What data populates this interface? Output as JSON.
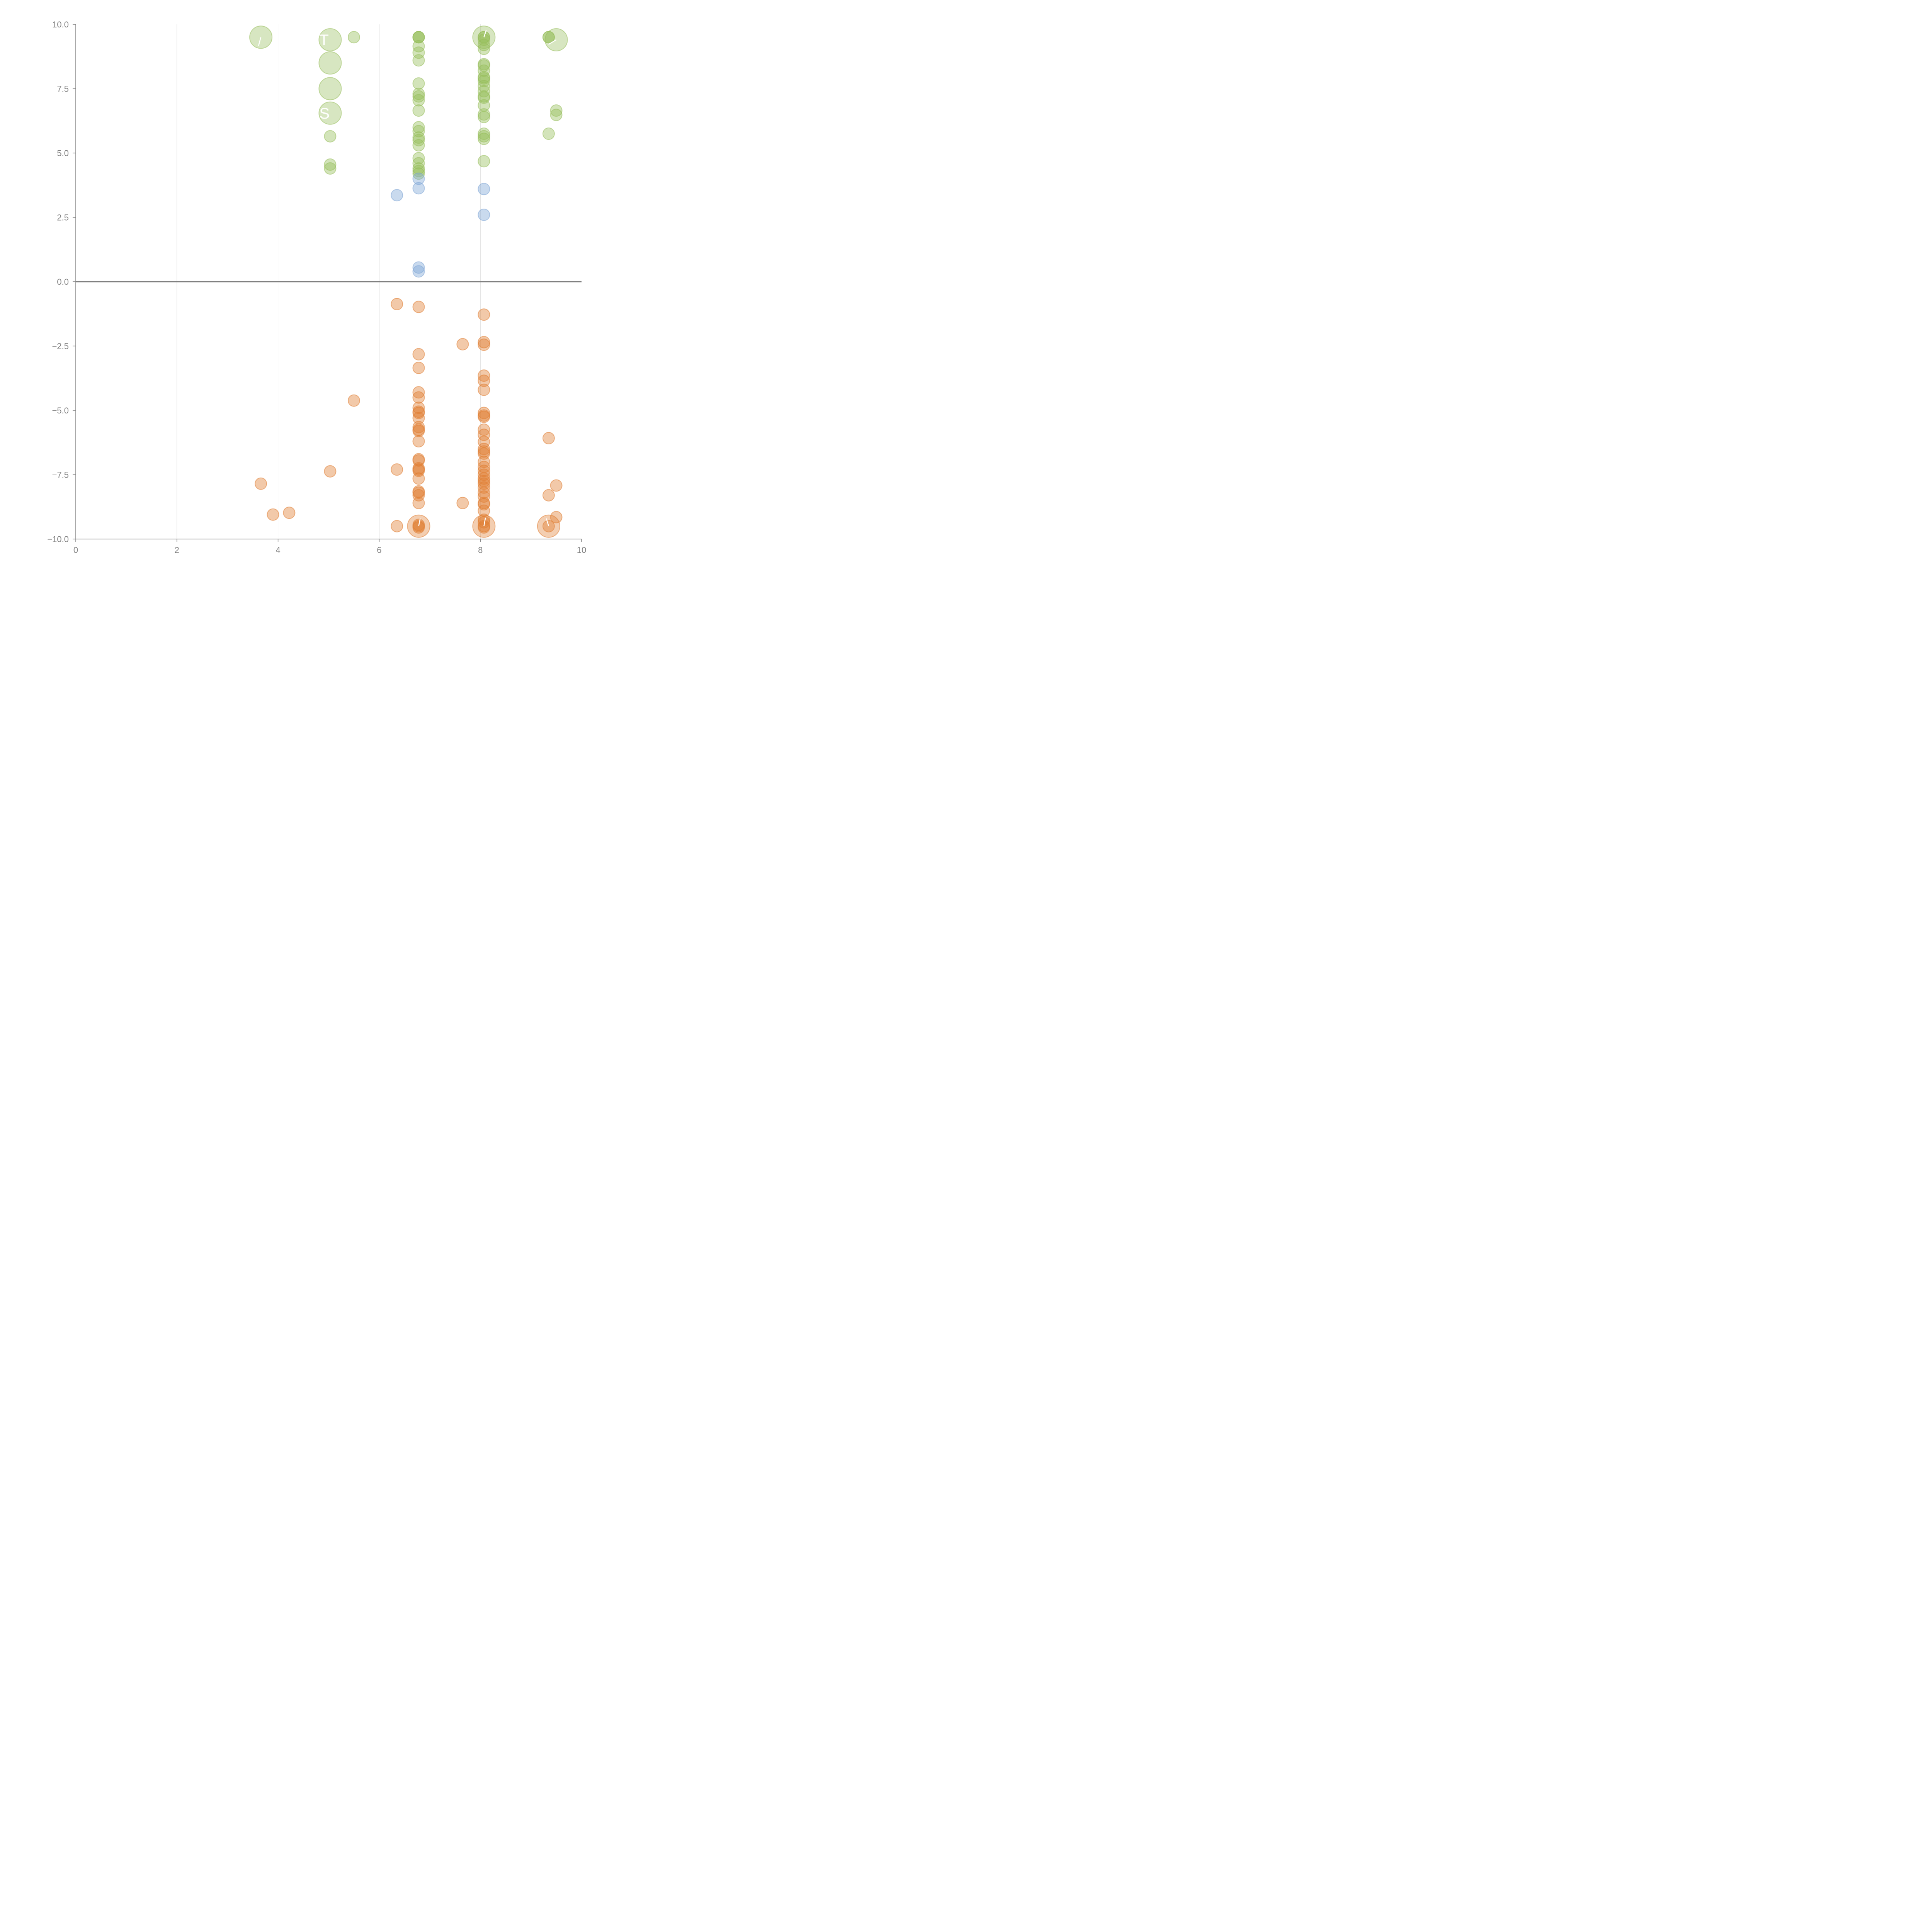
{
  "colors": {
    "positive_green": "#97be5b",
    "mid_blue": "#7fa6d6",
    "negative_orange": "#e07e33",
    "axis": "#808080",
    "grid": "#d9d9d9",
    "label": "#ffffff"
  },
  "chart_data": {
    "type": "scatter",
    "title": "",
    "xlabel": "",
    "ylabel": "",
    "xlim": [
      0,
      10
    ],
    "ylim": [
      -10,
      10
    ],
    "x_ticks": [
      "0",
      "2",
      "4",
      "6",
      "8",
      "10"
    ],
    "y_ticks": [
      "10.0",
      "7.5",
      "5.0",
      "2.5",
      "0.0",
      "−2.5",
      "−5.0",
      "−7.5",
      "−10.0"
    ],
    "grid": "vertical lines at x = 2, 4, 6, 8",
    "zero_line": true,
    "legend": "none",
    "series": [
      {
        "color": "#97be5b",
        "points": [
          [
            3.66,
            9.5,
            "large"
          ],
          [
            5.03,
            9.4,
            "large"
          ],
          [
            5.03,
            8.5,
            "large"
          ],
          [
            5.03,
            7.5,
            "large"
          ],
          [
            5.03,
            6.55,
            "large"
          ],
          [
            5.5,
            9.5
          ],
          [
            5.03,
            5.65
          ],
          [
            5.03,
            4.55
          ],
          [
            5.03,
            4.4
          ],
          [
            6.78,
            9.5
          ],
          [
            6.78,
            9.5
          ],
          [
            6.78,
            9.5
          ],
          [
            6.78,
            9.15
          ],
          [
            6.78,
            8.9
          ],
          [
            6.78,
            8.6
          ],
          [
            6.78,
            7.7
          ],
          [
            6.78,
            7.3
          ],
          [
            6.78,
            7.2
          ],
          [
            6.78,
            7.05
          ],
          [
            6.78,
            6.65
          ],
          [
            6.78,
            6.0
          ],
          [
            6.78,
            5.85
          ],
          [
            6.78,
            5.6
          ],
          [
            6.78,
            5.5
          ],
          [
            6.78,
            5.3
          ],
          [
            6.78,
            4.8
          ],
          [
            6.78,
            4.6
          ],
          [
            6.78,
            4.4
          ],
          [
            6.78,
            4.3
          ],
          [
            6.78,
            4.2
          ],
          [
            8.07,
            9.5,
            "large"
          ],
          [
            8.07,
            9.5
          ],
          [
            8.07,
            9.5
          ],
          [
            8.07,
            9.4
          ],
          [
            8.07,
            9.2
          ],
          [
            8.07,
            9.05
          ],
          [
            8.07,
            8.45
          ],
          [
            8.07,
            8.4
          ],
          [
            8.07,
            8.2
          ],
          [
            8.07,
            7.95
          ],
          [
            8.07,
            7.9
          ],
          [
            8.07,
            7.8
          ],
          [
            8.07,
            7.6
          ],
          [
            8.07,
            7.4
          ],
          [
            8.07,
            7.2
          ],
          [
            8.07,
            7.15
          ],
          [
            8.07,
            6.85
          ],
          [
            8.07,
            6.5
          ],
          [
            8.07,
            6.4
          ],
          [
            8.07,
            5.75
          ],
          [
            8.07,
            5.65
          ],
          [
            8.07,
            5.55
          ],
          [
            8.07,
            4.68
          ],
          [
            9.35,
            9.5
          ],
          [
            9.35,
            9.5
          ],
          [
            9.5,
            9.4,
            "large"
          ],
          [
            9.5,
            6.65
          ],
          [
            9.5,
            6.48
          ],
          [
            9.35,
            5.75
          ]
        ]
      },
      {
        "color": "#7fa6d6",
        "points": [
          [
            6.78,
            4.0
          ],
          [
            6.78,
            3.63
          ],
          [
            6.35,
            3.36
          ],
          [
            8.07,
            3.6
          ],
          [
            8.07,
            2.6
          ],
          [
            6.78,
            0.55
          ],
          [
            6.78,
            0.4
          ]
        ]
      },
      {
        "color": "#e07e33",
        "points": [
          [
            6.35,
            -0.87
          ],
          [
            6.78,
            -0.98
          ],
          [
            8.07,
            -1.28
          ],
          [
            7.65,
            -2.43
          ],
          [
            8.07,
            -2.35
          ],
          [
            8.07,
            -2.45
          ],
          [
            6.78,
            -2.82
          ],
          [
            6.78,
            -3.35
          ],
          [
            8.07,
            -3.65
          ],
          [
            8.07,
            -3.85
          ],
          [
            8.07,
            -4.2
          ],
          [
            6.78,
            -4.3
          ],
          [
            6.78,
            -4.5
          ],
          [
            5.5,
            -4.62
          ],
          [
            6.78,
            -4.9
          ],
          [
            6.78,
            -5.05
          ],
          [
            6.78,
            -5.1
          ],
          [
            6.78,
            -5.3
          ],
          [
            8.07,
            -5.1
          ],
          [
            8.07,
            -5.2
          ],
          [
            8.07,
            -5.25
          ],
          [
            6.78,
            -5.65
          ],
          [
            6.78,
            -5.75
          ],
          [
            6.78,
            -5.8
          ],
          [
            6.78,
            -6.2
          ],
          [
            8.07,
            -5.75
          ],
          [
            8.07,
            -5.95
          ],
          [
            8.07,
            -6.22
          ],
          [
            9.35,
            -6.08
          ],
          [
            8.07,
            -6.5
          ],
          [
            8.07,
            -6.6
          ],
          [
            8.07,
            -6.68
          ],
          [
            6.78,
            -6.9
          ],
          [
            6.78,
            -6.95
          ],
          [
            6.78,
            -7.25
          ],
          [
            6.78,
            -7.3
          ],
          [
            6.78,
            -7.35
          ],
          [
            6.78,
            -7.65
          ],
          [
            8.07,
            -7.0
          ],
          [
            8.07,
            -7.2
          ],
          [
            8.07,
            -7.35
          ],
          [
            8.07,
            -7.5
          ],
          [
            8.07,
            -7.65
          ],
          [
            8.07,
            -7.75
          ],
          [
            8.07,
            -7.85
          ],
          [
            8.07,
            -8.0
          ],
          [
            6.35,
            -7.3
          ],
          [
            5.03,
            -7.37
          ],
          [
            3.66,
            -7.85
          ],
          [
            9.5,
            -7.92
          ],
          [
            6.78,
            -8.15
          ],
          [
            6.78,
            -8.2
          ],
          [
            6.78,
            -8.3
          ],
          [
            6.78,
            -8.6
          ],
          [
            8.07,
            -8.2
          ],
          [
            8.07,
            -8.35
          ],
          [
            8.07,
            -8.6
          ],
          [
            8.07,
            -8.65
          ],
          [
            8.07,
            -8.9
          ],
          [
            9.35,
            -8.3
          ],
          [
            7.65,
            -8.6
          ],
          [
            3.9,
            -9.05
          ],
          [
            4.22,
            -8.98
          ],
          [
            8.07,
            -9.25
          ],
          [
            8.07,
            -9.35
          ],
          [
            9.5,
            -9.15
          ],
          [
            6.35,
            -9.5
          ],
          [
            6.78,
            -9.45
          ],
          [
            6.78,
            -9.5
          ],
          [
            6.78,
            -9.55
          ],
          [
            8.07,
            -9.5
          ],
          [
            8.07,
            -9.55
          ],
          [
            9.35,
            -9.5
          ],
          [
            6.78,
            -9.5,
            "large"
          ],
          [
            8.07,
            -9.5,
            "large"
          ],
          [
            9.35,
            -9.5,
            "large"
          ]
        ]
      }
    ],
    "annotations": [
      {
        "x": 5.03,
        "y": 9.4,
        "text": "T"
      },
      {
        "x": 5.03,
        "y": 6.55,
        "text": "S"
      }
    ]
  }
}
